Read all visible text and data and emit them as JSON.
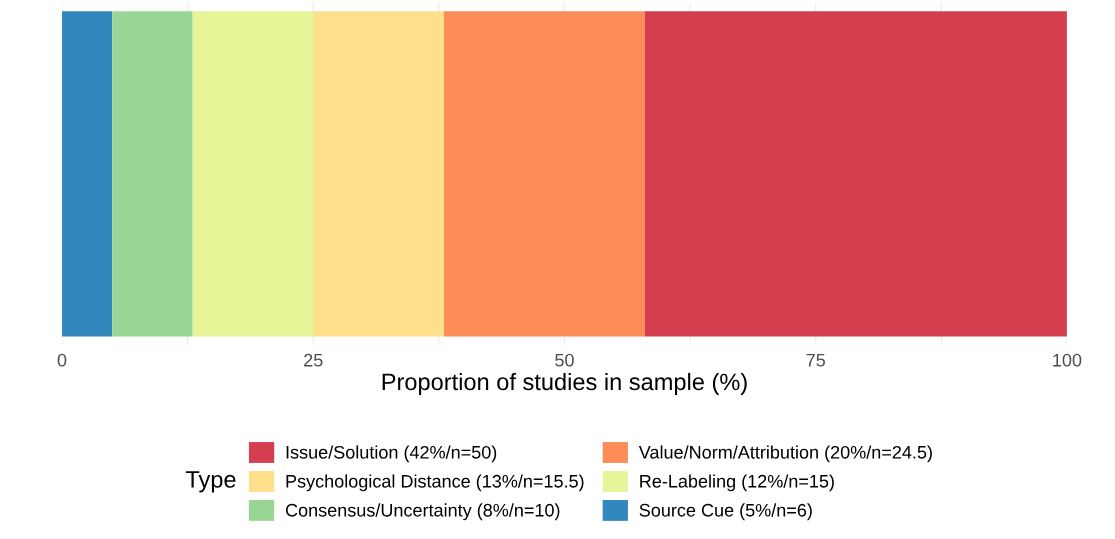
{
  "chart_data": {
    "type": "bar",
    "orientation": "horizontal",
    "stacked": true,
    "categories": [
      null
    ],
    "xlabel": "Proportion of studies in sample (%)",
    "legend_title": "Type",
    "series": [
      {
        "name": "Source Cue (5%/n=6)",
        "color": "#3288bd",
        "values": [
          5
        ]
      },
      {
        "name": "Consensus/Uncertainty (8%/n=10)",
        "color": "#99d594",
        "values": [
          8
        ]
      },
      {
        "name": "Re-Labeling (12%/n=15)",
        "color": "#e6f598",
        "values": [
          12
        ]
      },
      {
        "name": "Psychological Distance (13%/n=15.5)",
        "color": "#fee08b",
        "values": [
          13
        ]
      },
      {
        "name": "Value/Norm/Attribution (20%/n=24.5)",
        "color": "#fc8d59",
        "values": [
          20
        ]
      },
      {
        "name": "Issue/Solution (42%/n=50)",
        "color": "#d53e4f",
        "values": [
          42
        ]
      }
    ],
    "xlim": [
      0,
      100
    ],
    "xticks": [
      0,
      {
        "value": 12.5,
        "label": null
      },
      25,
      {
        "value": 37.5,
        "label": null
      },
      50,
      {
        "value": 62.5,
        "label": null
      },
      75,
      {
        "value": 87.5,
        "label": null
      },
      100
    ],
    "grid": "x",
    "legend": "bottom"
  }
}
